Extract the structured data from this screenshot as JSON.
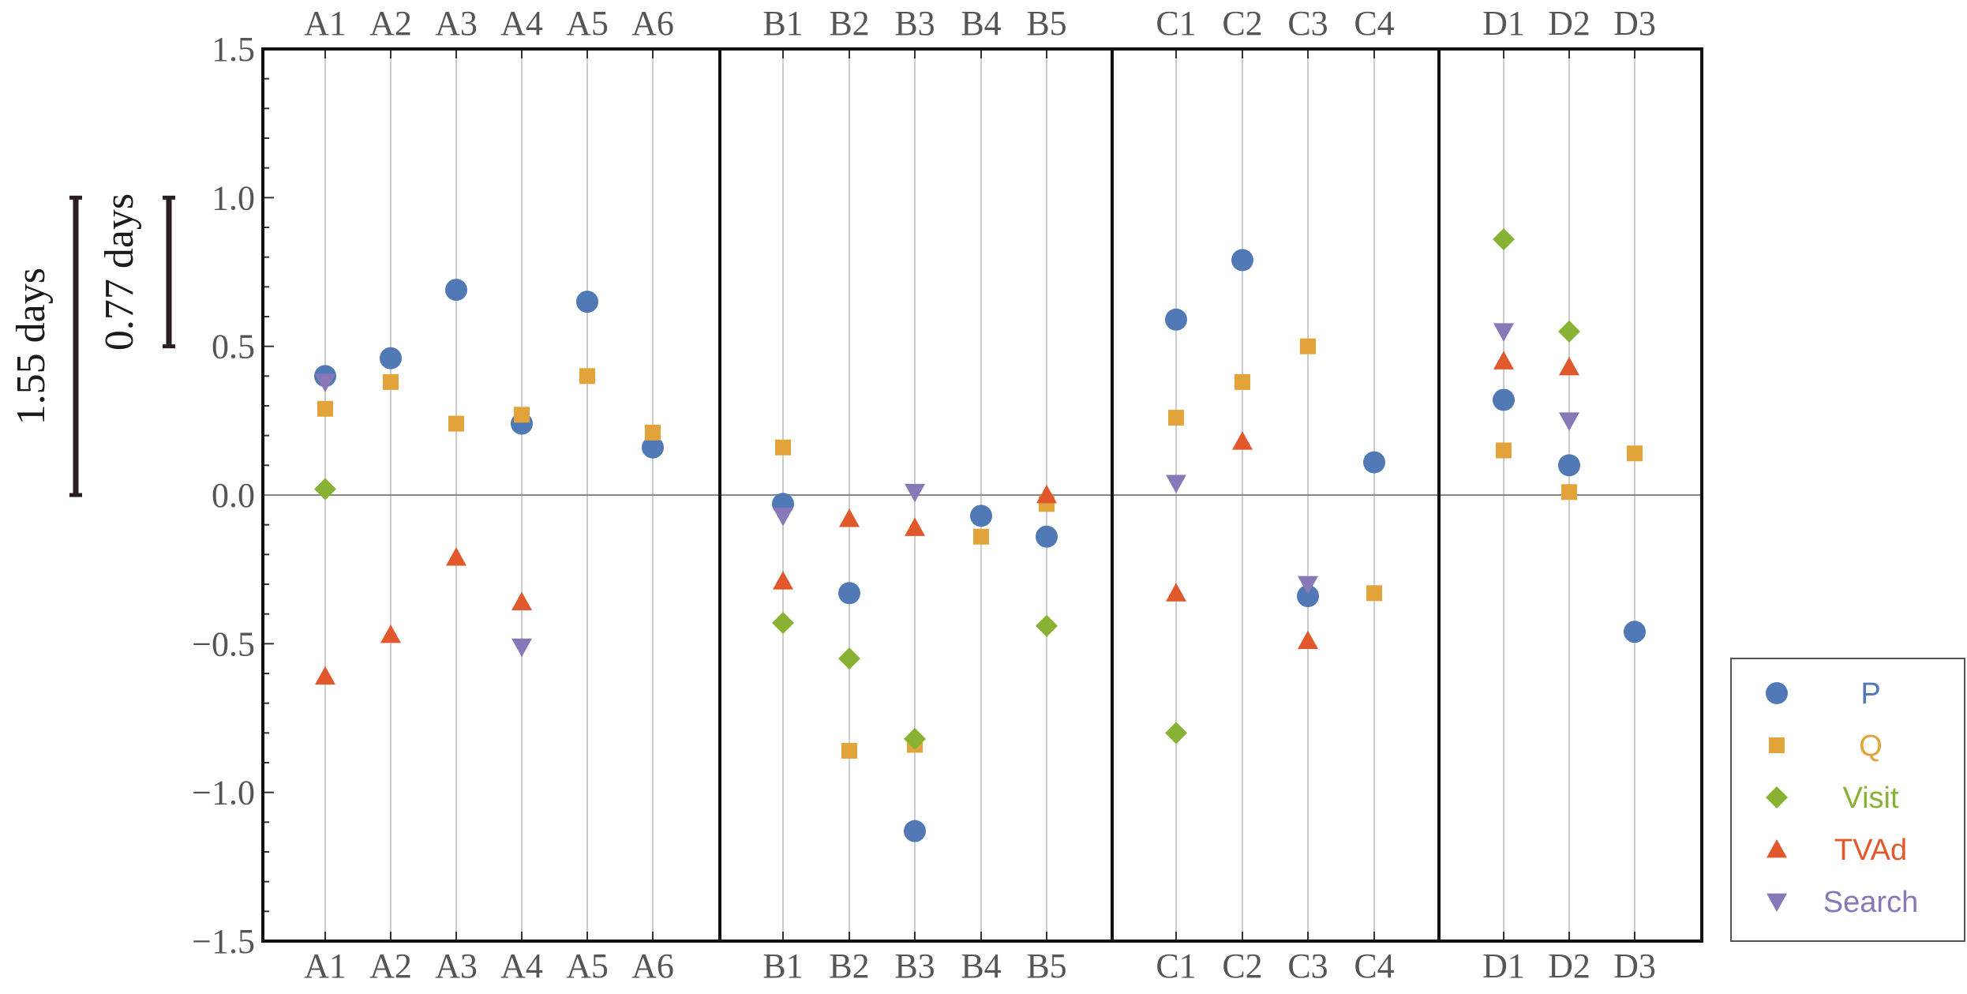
{
  "chart_data": {
    "type": "scatter",
    "ylim": [
      -1.5,
      1.5
    ],
    "yticks": [
      -1.5,
      -1.0,
      -0.5,
      0.0,
      0.5,
      1.0,
      1.5
    ],
    "ytick_labels": [
      "−1.5",
      "−1.0",
      "−0.5",
      "0.0",
      "0.5",
      "1.0",
      "1.5"
    ],
    "grid": "vertical lines at categories",
    "groups": [
      {
        "name": "A",
        "categories": [
          "A1",
          "A2",
          "A3",
          "A4",
          "A5",
          "A6"
        ]
      },
      {
        "name": "B",
        "categories": [
          "B1",
          "B2",
          "B3",
          "B4",
          "B5"
        ]
      },
      {
        "name": "C",
        "categories": [
          "C1",
          "C2",
          "C3",
          "C4"
        ]
      },
      {
        "name": "D",
        "categories": [
          "D1",
          "D2",
          "D3"
        ]
      }
    ],
    "categories": [
      "A1",
      "A2",
      "A3",
      "A4",
      "A5",
      "A6",
      "B1",
      "B2",
      "B3",
      "B4",
      "B5",
      "C1",
      "C2",
      "C3",
      "C4",
      "D1",
      "D2",
      "D3"
    ],
    "legend_position": "bottom-right",
    "series": [
      {
        "name": "P",
        "marker": "circle",
        "color": "#5079B5",
        "values": [
          0.4,
          0.46,
          0.69,
          0.24,
          0.65,
          0.16,
          -0.03,
          -0.33,
          -1.13,
          -0.07,
          -0.14,
          0.59,
          0.79,
          -0.34,
          0.11,
          0.32,
          0.1,
          -0.46
        ]
      },
      {
        "name": "Q",
        "marker": "square",
        "color": "#E2A43A",
        "values": [
          0.29,
          0.38,
          0.24,
          0.27,
          0.4,
          0.21,
          0.16,
          -0.86,
          -0.84,
          -0.14,
          -0.03,
          0.26,
          0.38,
          0.5,
          -0.33,
          0.15,
          0.01,
          0.14
        ]
      },
      {
        "name": "Visit",
        "marker": "diamond",
        "color": "#88B234",
        "values": [
          0.02,
          null,
          null,
          null,
          null,
          null,
          -0.43,
          -0.55,
          -0.82,
          null,
          -0.44,
          -0.8,
          null,
          null,
          null,
          0.86,
          0.55,
          null
        ]
      },
      {
        "name": "TVAd",
        "marker": "triangle-up",
        "color": "#E0582B",
        "values": [
          -0.61,
          -0.47,
          -0.21,
          -0.36,
          null,
          null,
          -0.29,
          -0.08,
          -0.11,
          null,
          0.0,
          -0.33,
          0.18,
          -0.49,
          null,
          0.45,
          0.43,
          null
        ]
      },
      {
        "name": "Search",
        "marker": "triangle-down",
        "color": "#8878B8",
        "values": [
          0.38,
          null,
          null,
          -0.51,
          null,
          null,
          -0.07,
          null,
          0.01,
          null,
          null,
          0.04,
          null,
          -0.3,
          null,
          0.55,
          0.25,
          null
        ]
      }
    ],
    "scale_bars": [
      {
        "label": "1.55 days",
        "y_from": 0.0,
        "y_to": 1.0
      },
      {
        "label": "0.77 days",
        "y_from": 0.5,
        "y_to": 1.0
      }
    ]
  }
}
